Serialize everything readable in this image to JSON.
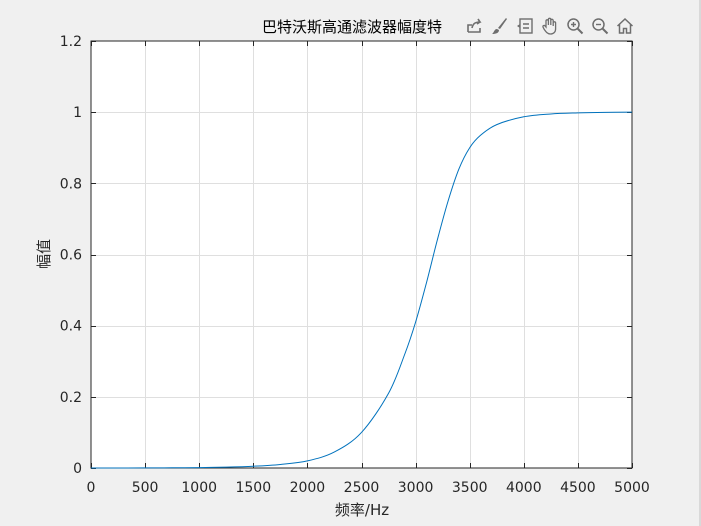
{
  "toolbar": {
    "icons": [
      "export-icon",
      "brush-icon",
      "data-tips-icon",
      "pan-hand-icon",
      "zoom-in-icon",
      "zoom-out-icon",
      "home-icon"
    ]
  },
  "chart_data": {
    "type": "line",
    "title": "巴特沃斯高通滤波器幅度特",
    "xlabel": "频率/Hz",
    "ylabel": "幅值",
    "xlim": [
      0,
      5000
    ],
    "ylim": [
      0,
      1.2
    ],
    "xticks": [
      0,
      500,
      1000,
      1500,
      2000,
      2500,
      3000,
      3500,
      4000,
      4500,
      5000
    ],
    "yticks": [
      0,
      0.2,
      0.4,
      0.6,
      0.8,
      1,
      1.2
    ],
    "xtick_labels": [
      "0",
      "500",
      "1000",
      "1500",
      "2000",
      "2500",
      "3000",
      "3500",
      "4000",
      "4500",
      "5000"
    ],
    "ytick_labels": [
      "0",
      "0.2",
      "0.4",
      "0.6",
      "0.8",
      "1",
      "1.2"
    ],
    "grid": true,
    "line_color": "#0072bd",
    "series": [
      {
        "x": [
          0,
          500,
          750,
          1000,
          1250,
          1500,
          1750,
          2000,
          2250,
          2500,
          2750,
          2900,
          3000,
          3100,
          3200,
          3300,
          3400,
          3500,
          3600,
          3750,
          4000,
          4250,
          4500,
          4750,
          5000
        ],
        "values": [
          0,
          0.0002,
          0.0006,
          0.0012,
          0.0025,
          0.005,
          0.01,
          0.02,
          0.045,
          0.1,
          0.21,
          0.32,
          0.41,
          0.52,
          0.64,
          0.75,
          0.84,
          0.9,
          0.935,
          0.965,
          0.987,
          0.995,
          0.998,
          0.9995,
          1.0
        ]
      }
    ]
  }
}
